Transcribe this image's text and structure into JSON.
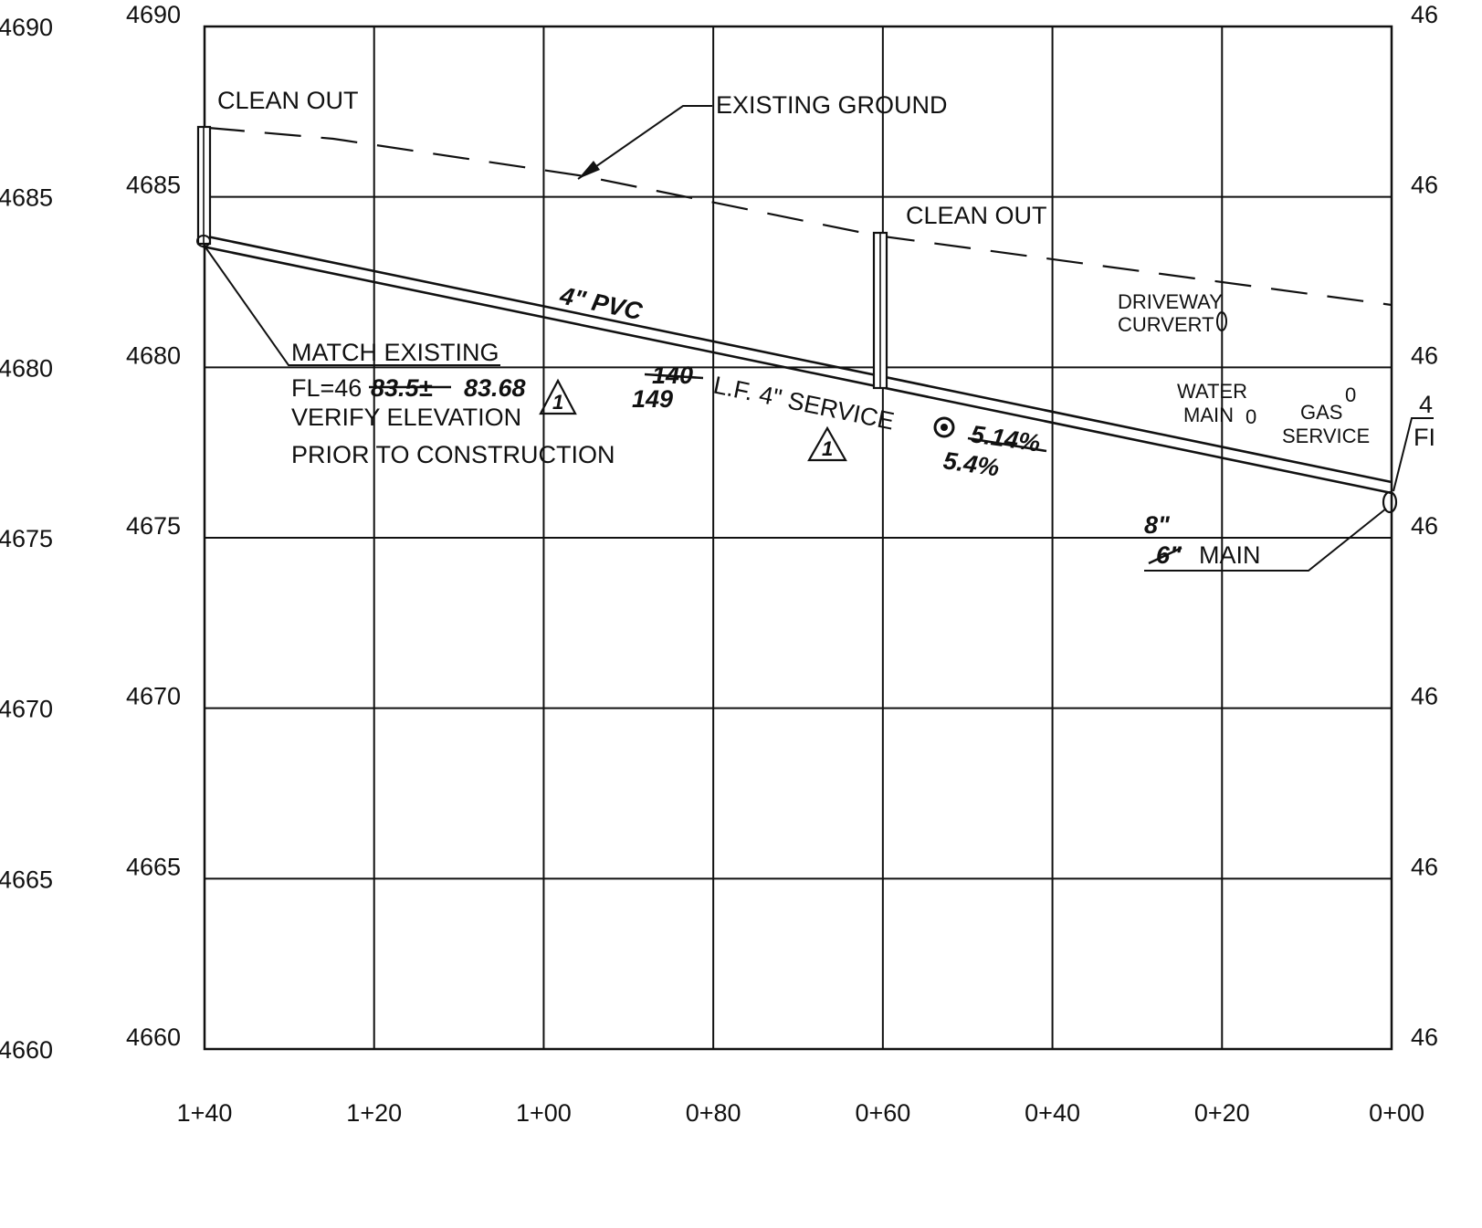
{
  "profile": {
    "elevations": [
      4690,
      4685,
      4680,
      4675,
      4670,
      4665,
      4660
    ],
    "stations": [
      "1+40",
      "1+20",
      "1+00",
      "0+80",
      "0+60",
      "0+40",
      "0+20",
      "0+00"
    ],
    "right_edge_fragments": [
      "46",
      "46",
      "46",
      "46",
      "46",
      "46",
      "46"
    ]
  },
  "annotations": {
    "clean_out_left": "CLEAN  OUT",
    "clean_out_mid": "CLEAN  OUT",
    "existing_ground": "EXISTING  GROUND",
    "pipe_label": "4\"  PVC",
    "match_existing": "MATCH  EXISTING",
    "fl_prefix": "FL=46",
    "fl_old": "83.5±",
    "fl_new": "83.68",
    "verify_elevation": "VERIFY  ELEVATION",
    "prior_to_construction": "PRIOR  TO  CONSTRUCTION",
    "length_old": "140",
    "length_new": "149",
    "service_text": "L.F.  4\"  SERVICE",
    "slope_old": "5.14%",
    "slope_new": "5.4%",
    "revision_mark": "1",
    "driveway_line1": "DRIVEWAY",
    "driveway_line2": "CURVERT",
    "water_line1": "WATER",
    "water_line2": "MAIN",
    "water_zero": "0",
    "gas_line1": "GAS",
    "gas_line2": "SERVICE",
    "gas_zero": "0",
    "main_new_size": "8\"",
    "main_old_size": "6\"",
    "main_label": "MAIN",
    "edge_fragment_top": "4",
    "edge_fragment_fl": "FI"
  }
}
